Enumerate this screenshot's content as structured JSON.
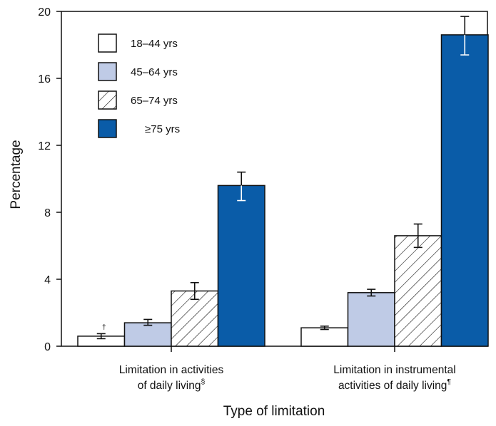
{
  "chart_data": {
    "type": "bar",
    "title": "",
    "xlabel": "Type of limitation",
    "ylabel": "Percentage",
    "ylim": [
      0,
      20
    ],
    "yticks": [
      0,
      4,
      8,
      12,
      16,
      20
    ],
    "grid": false,
    "legend_position": "top-left",
    "categories": [
      {
        "label_lines": [
          "Limitation in activities",
          "of daily living"
        ],
        "footnote": "§"
      },
      {
        "label_lines": [
          "Limitation in instrumental",
          "activities of daily living"
        ],
        "footnote": "¶"
      }
    ],
    "series": [
      {
        "name": "18–44 yrs",
        "fill": "#ffffff",
        "pattern": "none",
        "values": [
          0.6,
          1.1
        ],
        "error": [
          [
            0.45,
            0.75
          ],
          [
            1.0,
            1.2
          ]
        ]
      },
      {
        "name": "45–64 yrs",
        "fill": "#bfcbe6",
        "pattern": "none",
        "values": [
          1.4,
          3.2
        ],
        "error": [
          [
            1.25,
            1.6
          ],
          [
            3.0,
            3.4
          ]
        ]
      },
      {
        "name": "65–74 yrs",
        "fill": "#ffffff",
        "pattern": "diagonal-hatch",
        "values": [
          3.3,
          6.6
        ],
        "error": [
          [
            2.8,
            3.8
          ],
          [
            5.9,
            7.3
          ]
        ]
      },
      {
        "name": "≥75 yrs",
        "fill": "#0a5ca8",
        "pattern": "none",
        "values": [
          9.6,
          18.6
        ],
        "error": [
          [
            8.7,
            10.4
          ],
          [
            17.4,
            19.7
          ]
        ]
      }
    ],
    "annotations": [
      {
        "text": "†",
        "series": 0,
        "category": 0
      }
    ]
  }
}
